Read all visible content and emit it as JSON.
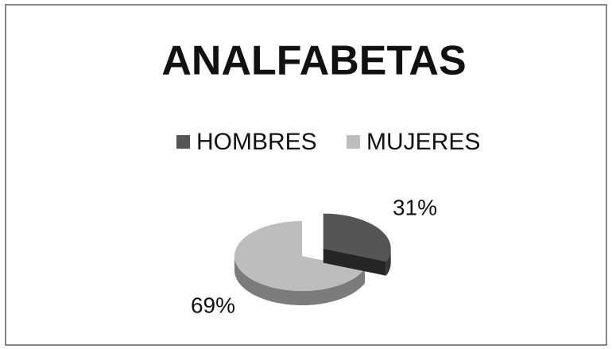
{
  "chart_data": {
    "type": "pie3d",
    "title": "ANALFABETAS",
    "categories": [
      "HOMBRES",
      "MUJERES"
    ],
    "values": [
      31,
      69
    ],
    "value_labels": [
      "31%",
      "69%"
    ],
    "colors": [
      "#555555",
      "#bdbdbd"
    ],
    "legend": "top"
  }
}
